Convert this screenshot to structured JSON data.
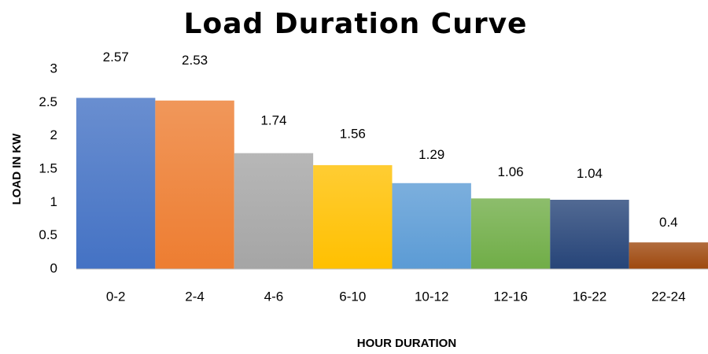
{
  "chart_data": {
    "type": "bar",
    "title": "Load Duration Curve",
    "x_label": "HOUR DURATION",
    "y_label": "LOAD IN KW",
    "categories": [
      "0-2",
      "2-4",
      "4-6",
      "6-10",
      "10-12",
      "12-16",
      "16-22",
      "22-24"
    ],
    "values": [
      2.57,
      2.53,
      1.74,
      1.56,
      1.29,
      1.06,
      1.04,
      0.4
    ],
    "colors": [
      "#4472c4",
      "#ed7d31",
      "#a5a5a5",
      "#ffc000",
      "#5b9bd5",
      "#70ad47",
      "#264478",
      "#9e480e"
    ],
    "ylim": [
      0,
      3
    ],
    "yticks": [
      0,
      0.5,
      1,
      1.5,
      2,
      2.5,
      3
    ],
    "grid": false
  }
}
